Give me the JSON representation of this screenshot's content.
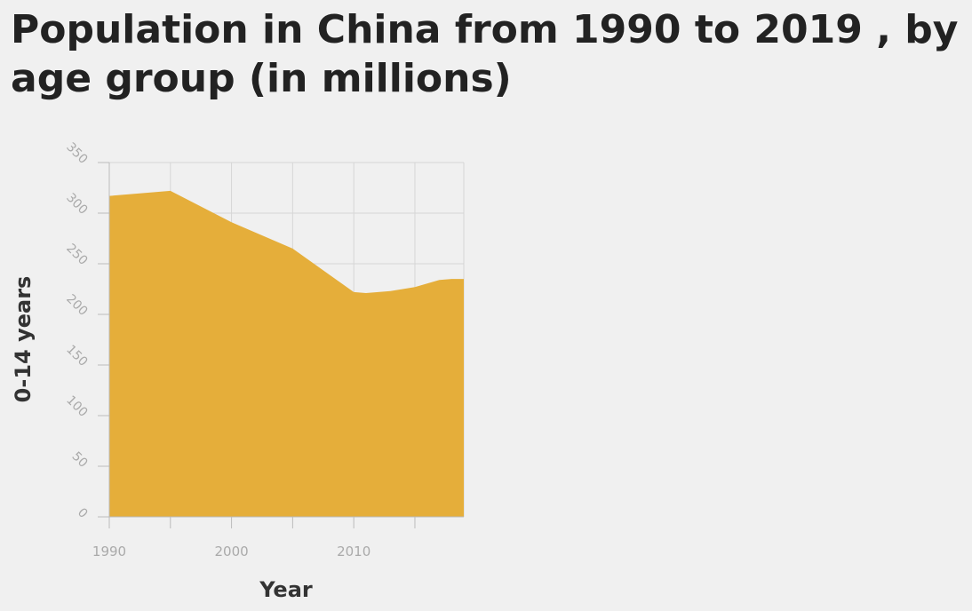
{
  "title": "Population in China from 1990 to 2019 , by age group (in millions)",
  "chart_data": {
    "type": "area",
    "title": "Population in China from 1990 to 2019 , by age group (in millions)",
    "xlabel": "Year",
    "ylabel": "0-14 years",
    "x": [
      1990,
      1995,
      2000,
      2005,
      2010,
      2011,
      2013,
      2015,
      2017,
      2018,
      2019
    ],
    "series": [
      {
        "values": [
          317,
          322,
          291,
          265,
          222,
          221,
          223,
          227,
          234,
          235,
          235
        ]
      }
    ],
    "xlim": [
      1990,
      2019
    ],
    "ylim": [
      0,
      350
    ],
    "x_ticks": [
      1990,
      1995,
      2000,
      2005,
      2010,
      2015
    ],
    "x_tick_labels": [
      "1990",
      "",
      "2000",
      "",
      "2010",
      ""
    ],
    "y_ticks": [
      0,
      50,
      100,
      150,
      200,
      250,
      300,
      350
    ],
    "grid": true,
    "color": "#e5ae3a"
  }
}
